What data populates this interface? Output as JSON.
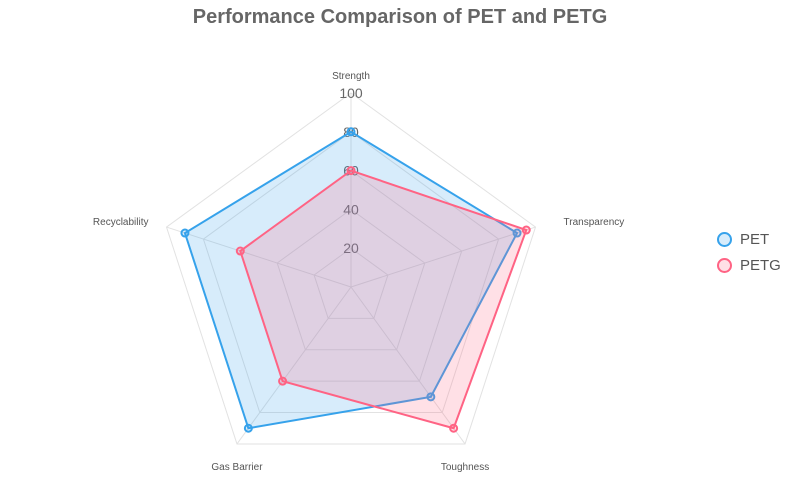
{
  "chart_data": {
    "type": "radar",
    "title": "Performance Comparison of PET and PETG",
    "axes": [
      "Strength",
      "Transparency",
      "Toughness",
      "Gas Barrier",
      "Recyclability"
    ],
    "r_ticks": [
      20,
      40,
      60,
      80,
      100
    ],
    "r_range": [
      0,
      100
    ],
    "grid": true,
    "legend_position": "right",
    "series": [
      {
        "name": "PET",
        "values": [
          80,
          90,
          70,
          90,
          90
        ],
        "color": "#36a2eb",
        "fill": "rgba(54,162,235,0.2)"
      },
      {
        "name": "PETG",
        "values": [
          60,
          95,
          90,
          60,
          60
        ],
        "color": "#ff6384",
        "fill": "rgba(255,99,132,0.2)"
      }
    ]
  }
}
